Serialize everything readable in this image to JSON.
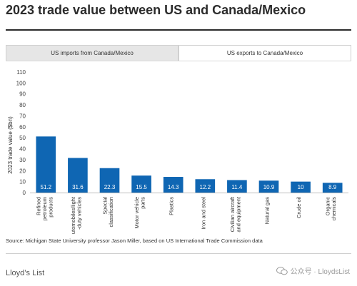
{
  "title": "2023 trade value between US and Canada/Mexico",
  "tabs": [
    {
      "label": "US imports from Canada/Mexico",
      "active": false
    },
    {
      "label": "US exports to Canada/Mexico",
      "active": true
    }
  ],
  "chart_data": {
    "type": "bar",
    "ylabel": "2023 trade value ($bn)",
    "ylim": [
      0,
      110
    ],
    "yticks": [
      0,
      10,
      20,
      30,
      40,
      50,
      60,
      70,
      80,
      90,
      100,
      110
    ],
    "categories": [
      "Refined petroleum products",
      "Automobiles/light-duty vehicles",
      "Special classification",
      "Motor vehicle parts",
      "Plastics",
      "Iron and steel",
      "Civilian aircraft and equipment",
      "Natural gas",
      "Crude oil",
      "Organic chemicals"
    ],
    "category_lines": [
      [
        "Refined",
        "petroleum",
        "products"
      ],
      [
        "Automobiles/light",
        "-duty vehicles"
      ],
      [
        "Special",
        "classification"
      ],
      [
        "Motor vehicle",
        "parts"
      ],
      [
        "Plastics"
      ],
      [
        "Iron and steel"
      ],
      [
        "Civilian aircraft",
        "and equipment"
      ],
      [
        "Natural gas"
      ],
      [
        "Crude oil"
      ],
      [
        "Organic",
        "chemicals"
      ]
    ],
    "values": [
      51.2,
      31.6,
      22.3,
      15.5,
      14.3,
      12.2,
      11.4,
      10.9,
      10,
      8.9
    ],
    "value_labels": [
      "51.2",
      "31.6",
      "22.3",
      "15.5",
      "14.3",
      "12.2",
      "11.4",
      "10.9",
      "10",
      "8.9"
    ],
    "bar_color": "#0f66b3",
    "label_color": "#ffffff",
    "grid": false
  },
  "source": "Source: Michigan State University professor Jason Miller, based on US International Trade Commission data",
  "footer": {
    "logo_text": "Lloyd’s List",
    "watermark_text": "公众号 · LloydsList"
  }
}
